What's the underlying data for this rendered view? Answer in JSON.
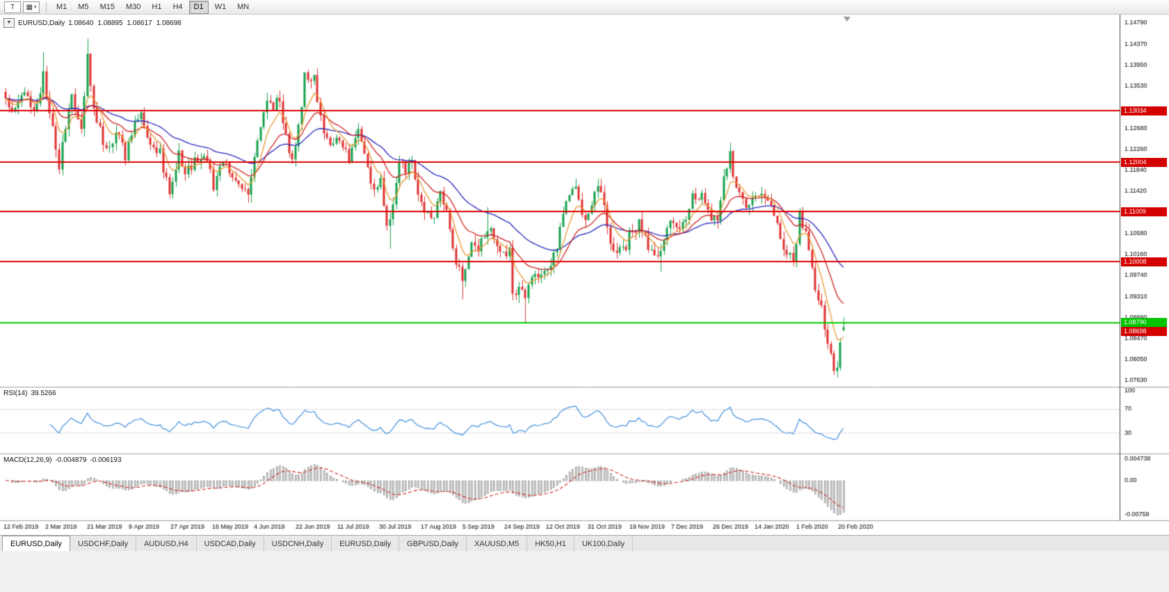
{
  "toolbar": {
    "icons": [
      {
        "name": "chart-window-icon",
        "glyph": "T"
      },
      {
        "name": "templates-icon",
        "glyph": "▦",
        "caret": "▾"
      }
    ],
    "timeframes": [
      "M1",
      "M5",
      "M15",
      "M30",
      "H1",
      "H4",
      "D1",
      "W1",
      "MN"
    ],
    "active_timeframe": "D1"
  },
  "chart_window": {
    "collapse_glyph": "▼"
  },
  "chart_data": {
    "type": "candlestick",
    "title": "EURUSD,Daily",
    "ohlc_display": {
      "open": "1.08640",
      "high": "1.08895",
      "low": "1.08617",
      "close": "1.08698"
    },
    "ohlc_current": {
      "open": 1.0864,
      "high": 1.08895,
      "low": 1.08617,
      "close": 1.08698
    },
    "y_range": {
      "min": 1.0763,
      "max": 1.1479
    },
    "y_ticks": [
      "1.14790",
      "1.14370",
      "1.13950",
      "1.13530",
      "1.12680",
      "1.12260",
      "1.11840",
      "1.11420",
      "1.10580",
      "1.10160",
      "1.09740",
      "1.09310",
      "1.08890",
      "1.08470",
      "1.08050",
      "1.07630"
    ],
    "x_labels": [
      "12 Feb 2019",
      "2 Mar 2019",
      "21 Mar 2019",
      "9 Apr 2019",
      "27 Apr 2019",
      "16 May 2019",
      "4 Jun 2019",
      "22 Jun 2019",
      "11 Jul 2019",
      "30 Jul 2019",
      "17 Aug 2019",
      "5 Sep 2019",
      "24 Sep 2019",
      "12 Oct 2019",
      "31 Oct 2019",
      "19 Nov 2019",
      "7 Dec 2019",
      "26 Dec 2019",
      "14 Jan 2020",
      "1 Feb 2020",
      "20 Feb 2020"
    ],
    "candle_count": 267,
    "candle_spacing": 4.53,
    "first_candle_x": 8,
    "noise_seed": 20200224,
    "noise_amp": 0.0011,
    "wick_amp": 0.0016,
    "up_color": "#14a04a",
    "down_color": "#e03030",
    "price_waypoints": [
      [
        0,
        1.1328
      ],
      [
        2,
        1.1295
      ],
      [
        6,
        1.134
      ],
      [
        9,
        1.13
      ],
      [
        12,
        1.1372
      ],
      [
        14,
        1.1305
      ],
      [
        17,
        1.1195
      ],
      [
        18,
        1.124
      ],
      [
        21,
        1.1328
      ],
      [
        24,
        1.1258
      ],
      [
        26,
        1.141
      ],
      [
        28,
        1.1305
      ],
      [
        32,
        1.122
      ],
      [
        35,
        1.1262
      ],
      [
        38,
        1.1215
      ],
      [
        41,
        1.1272
      ],
      [
        43,
        1.129
      ],
      [
        46,
        1.124
      ],
      [
        49,
        1.1218
      ],
      [
        52,
        1.1133
      ],
      [
        55,
        1.1215
      ],
      [
        57,
        1.1175
      ],
      [
        60,
        1.12
      ],
      [
        63,
        1.122
      ],
      [
        66,
        1.1155
      ],
      [
        69,
        1.12
      ],
      [
        72,
        1.118
      ],
      [
        75,
        1.1152
      ],
      [
        77,
        1.1131
      ],
      [
        80,
        1.124
      ],
      [
        83,
        1.1334
      ],
      [
        85,
        1.1308
      ],
      [
        87,
        1.133
      ],
      [
        90,
        1.1208
      ],
      [
        92,
        1.1225
      ],
      [
        95,
        1.137
      ],
      [
        98,
        1.1373
      ],
      [
        100,
        1.1285
      ],
      [
        103,
        1.1227
      ],
      [
        106,
        1.1253
      ],
      [
        109,
        1.1205
      ],
      [
        112,
        1.1277
      ],
      [
        114,
        1.121
      ],
      [
        117,
        1.1145
      ],
      [
        119,
        1.1158
      ],
      [
        121,
        1.1076
      ],
      [
        122,
        1.1085
      ],
      [
        125,
        1.1199
      ],
      [
        127,
        1.118
      ],
      [
        129,
        1.121
      ],
      [
        131,
        1.1139
      ],
      [
        134,
        1.1095
      ],
      [
        136,
        1.108
      ],
      [
        138,
        1.1144
      ],
      [
        140,
        1.11
      ],
      [
        143,
        1.0991
      ],
      [
        145,
        1.0971
      ],
      [
        148,
        1.1035
      ],
      [
        150,
        1.1028
      ],
      [
        153,
        1.1073
      ],
      [
        156,
        1.1031
      ],
      [
        158,
        1.1017
      ],
      [
        160,
        1.1021
      ],
      [
        161,
        1.0942
      ],
      [
        163,
        1.094
      ],
      [
        165,
        1.0932
      ],
      [
        167,
        1.0965
      ],
      [
        169,
        1.098
      ],
      [
        171,
        1.0972
      ],
      [
        173,
        1.1003
      ],
      [
        175,
        1.1034
      ],
      [
        178,
        1.1125
      ],
      [
        180,
        1.1151
      ],
      [
        182,
        1.113
      ],
      [
        184,
        1.108
      ],
      [
        186,
        1.111
      ],
      [
        188,
        1.116
      ],
      [
        193,
        1.1018
      ],
      [
        195,
        1.1035
      ],
      [
        197,
        1.1021
      ],
      [
        198,
        1.1051
      ],
      [
        201,
        1.1075
      ],
      [
        202,
        1.1058
      ],
      [
        205,
        1.1017
      ],
      [
        208,
        1.1018
      ],
      [
        211,
        1.108
      ],
      [
        213,
        1.1059
      ],
      [
        216,
        1.1093
      ],
      [
        218,
        1.113
      ],
      [
        220,
        1.1121
      ],
      [
        221,
        1.1145
      ],
      [
        224,
        1.1078
      ],
      [
        226,
        1.1087
      ],
      [
        228,
        1.1177
      ],
      [
        230,
        1.1213
      ],
      [
        231,
        1.1172
      ],
      [
        235,
        1.1103
      ],
      [
        237,
        1.1122
      ],
      [
        241,
        1.1136
      ],
      [
        244,
        1.109
      ],
      [
        247,
        1.1024
      ],
      [
        250,
        1.1002
      ],
      [
        252,
        1.1093
      ],
      [
        254,
        1.106
      ],
      [
        257,
        1.0946
      ],
      [
        259,
        1.091
      ],
      [
        261,
        1.0831
      ],
      [
        263,
        1.0792
      ],
      [
        264,
        1.0786
      ],
      [
        265,
        1.0846
      ],
      [
        266,
        1.08698
      ]
    ],
    "special_wicks": [
      [
        12,
        "h",
        1.142
      ],
      [
        26,
        "h",
        1.1448
      ],
      [
        122,
        "l",
        1.1027
      ],
      [
        145,
        "l",
        1.0926
      ],
      [
        153,
        "h",
        1.111
      ],
      [
        165,
        "l",
        1.0879
      ],
      [
        208,
        "l",
        1.0981
      ],
      [
        230,
        "h",
        1.1239
      ],
      [
        264,
        "l",
        1.0778
      ]
    ],
    "moving_averages": [
      {
        "period": 40,
        "color": "#2525bd"
      },
      {
        "period": 18,
        "color": "#d02020"
      },
      {
        "period": 7,
        "color": "#e8982e"
      }
    ],
    "hlines": [
      {
        "price": 1.13034,
        "label": "1.13034",
        "color": "#dd0000"
      },
      {
        "price": 1.12004,
        "label": "1.12004",
        "color": "#dd0000"
      },
      {
        "price": 1.11009,
        "label": "1.11009",
        "color": "#dd0000"
      },
      {
        "price": 1.10008,
        "label": "1.10008",
        "color": "#dd0000"
      }
    ],
    "green_line": {
      "price": 1.0879,
      "label": "1.08790",
      "color": "#00cc00"
    },
    "current_price": {
      "value": 1.08698,
      "label": "1.08698",
      "badge_color": "#d40000"
    },
    "rsi": {
      "name": "RSI(14)",
      "value": "39.5266",
      "period": 14,
      "color": "#3f8edc",
      "top_label": "100",
      "range": [
        0,
        100
      ],
      "levels": [
        {
          "value": 70,
          "label": "70"
        },
        {
          "value": 30,
          "label": "30"
        }
      ]
    },
    "macd": {
      "name": "MACD(12,26,9)",
      "value_main": "-0.004879",
      "value_signal": "-0.006193",
      "fast": 12,
      "slow": 26,
      "signal": 9,
      "histogram_color": "#d6d6d6",
      "histogram_border": "#8f8f8f",
      "signal_color": "#d02020",
      "scale": {
        "max": 0.004738,
        "max_label": "0.004738",
        "zero_label": "0.00",
        "min": -0.00758,
        "min_label": "-0.00758"
      }
    }
  },
  "bottom_tabs": {
    "tabs": [
      {
        "label": "EURUSD,Daily",
        "active": true
      },
      {
        "label": "USDCHF,Daily",
        "active": false
      },
      {
        "label": "AUDUSD,H4",
        "active": false
      },
      {
        "label": "USDCAD,Daily",
        "active": false
      },
      {
        "label": "USDCNH,Daily",
        "active": false
      },
      {
        "label": "EURUSD,Daily",
        "active": false
      },
      {
        "label": "GBPUSD,Daily",
        "active": false
      },
      {
        "label": "XAUUSD,M5",
        "active": false
      },
      {
        "label": "HK50,H1",
        "active": false
      },
      {
        "label": "UK100,Daily",
        "active": false
      }
    ]
  }
}
